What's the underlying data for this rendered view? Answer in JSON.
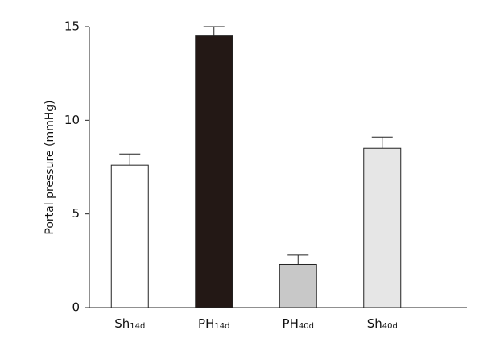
{
  "chart_data": {
    "type": "bar",
    "y_label": "Portal pressure  (mmHg)",
    "categories": [
      "Sh14d",
      "PH14d",
      "PH40d",
      "Sh40d"
    ],
    "values": [
      7.6,
      14.5,
      2.3,
      8.5
    ],
    "errors": [
      0.6,
      0.5,
      0.5,
      0.6
    ],
    "colors": [
      "#ffffff",
      "#231815",
      "#c8c8c8",
      "#e6e6e6"
    ],
    "ylim": [
      0,
      15
    ],
    "yticks": [
      0,
      5,
      10,
      15
    ],
    "grid": false
  }
}
